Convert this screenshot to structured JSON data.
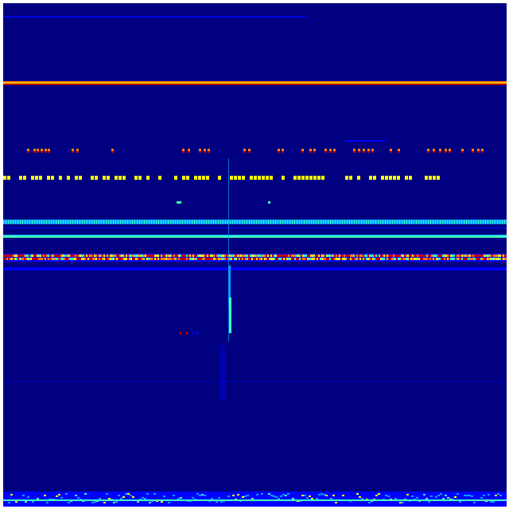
{
  "view": {
    "type": "spectrogram-waterfall",
    "colormap": "jet",
    "colors": {
      "background": "#000080",
      "low": "#0000ff",
      "mid_low": "#00a0ff",
      "mid": "#40ffc0",
      "high": "#ffff00",
      "peak": "#ff8000",
      "max": "#c00000"
    }
  }
}
